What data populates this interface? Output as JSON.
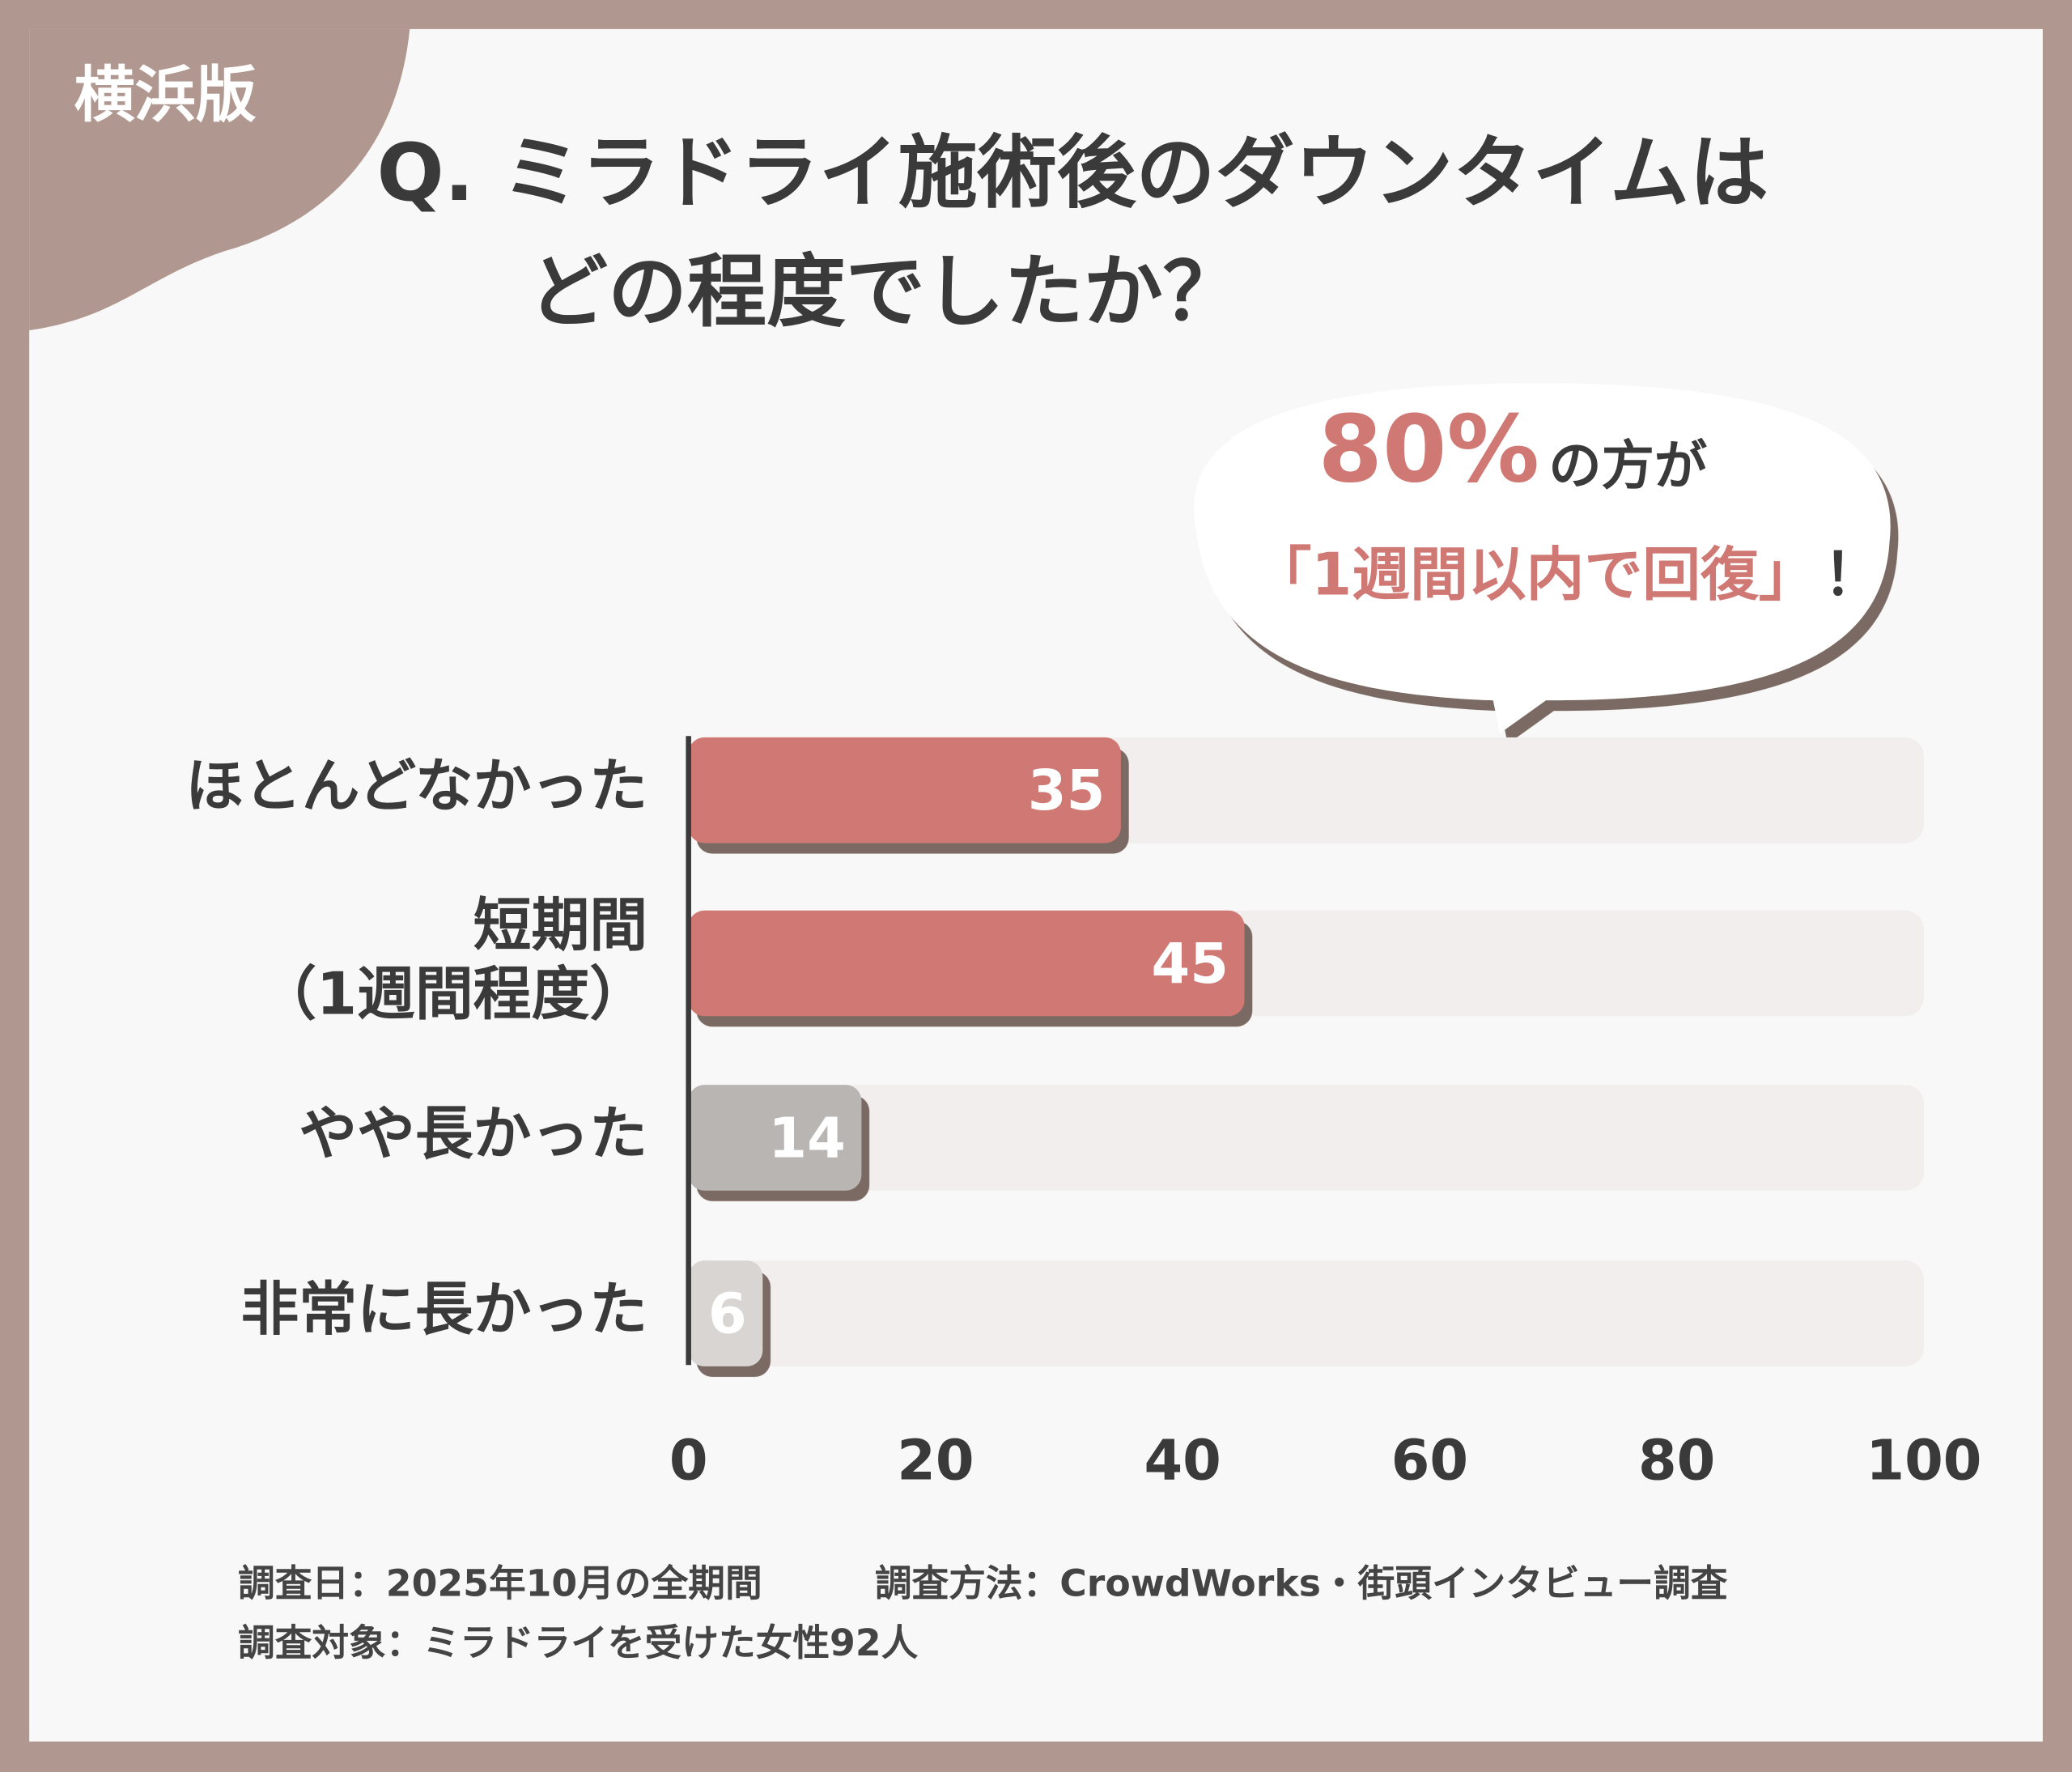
{
  "badge": "横浜版",
  "chart_data": {
    "type": "bar",
    "orientation": "horizontal",
    "title": [
      "Q. ミラドライ施術後のダウンタイムは",
      "どの程度でしたか？"
    ],
    "callout": {
      "highlight": "80%",
      "text": "の方が",
      "quote": "「1週間以内で回復」",
      "mark": "！"
    },
    "categories": [
      "ほとんどなかった",
      "短期間\n（1週間程度）",
      "やや長かった",
      "非常に長かった"
    ],
    "values": [
      35,
      45,
      14,
      6
    ],
    "colors": [
      "#d07873",
      "#d07873",
      "#b9b5b3",
      "#d8d5d3"
    ],
    "xlim": [
      0,
      100
    ],
    "xticks": [
      0,
      20,
      40,
      60,
      80,
      100
    ]
  },
  "footer": [
    "調査日：2025年10月の全期間",
    "調査方法：CrowdWorks・街頭インタビュー調査",
    "調査対象：ミラドライを受けた女性92人"
  ]
}
